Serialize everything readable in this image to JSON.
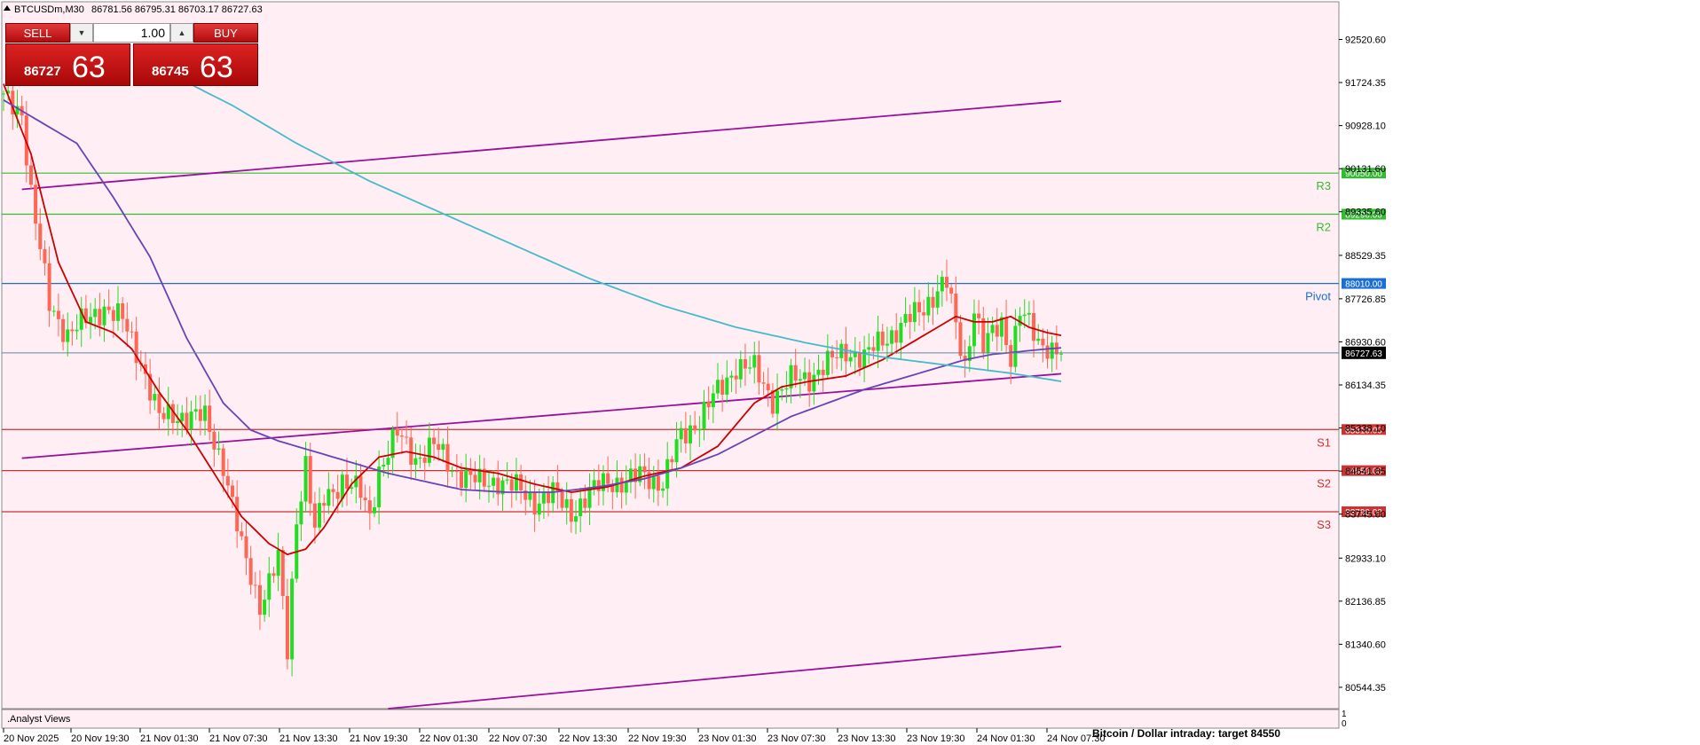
{
  "header": {
    "symbol": "BTCUSDm,M30",
    "ohlc": "86781.56 86795.31 86703.17 86727.63"
  },
  "trade_panel": {
    "sell_label": "SELL",
    "buy_label": "BUY",
    "lot": "1.00",
    "sell_small": "86727",
    "sell_big": "63",
    "buy_small": "86745",
    "buy_big": "63",
    "arrow_down": "▼",
    "arrow_up": "▲"
  },
  "indicator_panel": {
    "name": ".Analyst Views",
    "scale_top": "1",
    "scale_bottom": "0"
  },
  "footer_text": "Bitcoin / Dollar intraday:  target 84550",
  "colors": {
    "background": "#ffeef3",
    "bull": "#22dd22",
    "bear": "#ff6655",
    "ma_fast": "#cc0000",
    "ma_mid": "#6644bb",
    "ma_slow": "#44bbcc",
    "channel": "#991199",
    "pivot": "#1a6fd4",
    "resistance": "#33bb33",
    "support": "#cc3333",
    "current_price": "#5a8aa0"
  },
  "chart_data": {
    "type": "candlestick",
    "ylim": [
      80150,
      93250
    ],
    "y_ticks": [
      "92520.60",
      "91724.35",
      "90928.10",
      "90131.60",
      "89335.60",
      "88529.35",
      "87726.85",
      "86930.60",
      "86134.35",
      "85338.10",
      "84541.85",
      "83745.60",
      "82933.10",
      "82136.85",
      "81340.60",
      "80544.35"
    ],
    "x_ticks": [
      "20 Nov 2025",
      "20 Nov 19:30",
      "21 Nov 01:30",
      "21 Nov 07:30",
      "21 Nov 13:30",
      "21 Nov 19:30",
      "22 Nov 01:30",
      "22 Nov 07:30",
      "22 Nov 13:30",
      "22 Nov 19:30",
      "23 Nov 01:30",
      "23 Nov 07:30",
      "23 Nov 13:30",
      "23 Nov 19:30",
      "24 Nov 01:30",
      "24 Nov 07:30"
    ],
    "bar_count": 232,
    "current_price": "86727.63",
    "levels": [
      {
        "name": "R3",
        "value": 90050,
        "label": "90050.00",
        "kind": "resistance"
      },
      {
        "name": "R2",
        "value": 89290,
        "label": "89290.00",
        "kind": "resistance"
      },
      {
        "name": "Pivot",
        "value": 88010,
        "label": "88010.00",
        "kind": "pivot"
      },
      {
        "name": "S1",
        "value": 85310,
        "label": "85310.00",
        "kind": "support"
      },
      {
        "name": "S2",
        "value": 84550,
        "label": "84550.00",
        "kind": "support"
      },
      {
        "name": "S3",
        "value": 83790,
        "label": "83790.00",
        "kind": "support"
      }
    ],
    "channel_lines": [
      {
        "from": [
          4,
          89750
        ],
        "to": [
          231,
          91380
        ]
      },
      {
        "from": [
          4,
          84780
        ],
        "to": [
          231,
          86340
        ]
      },
      {
        "from": [
          84,
          80150
        ],
        "to": [
          231,
          81300
        ]
      }
    ],
    "close_path": [
      [
        0,
        91400
      ],
      [
        4,
        91200
      ],
      [
        6,
        89700
      ],
      [
        8,
        88600
      ],
      [
        10,
        87600
      ],
      [
        14,
        87100
      ],
      [
        18,
        87300
      ],
      [
        22,
        87600
      ],
      [
        26,
        87300
      ],
      [
        30,
        86600
      ],
      [
        34,
        85500
      ],
      [
        38,
        85600
      ],
      [
        44,
        85500
      ],
      [
        48,
        84700
      ],
      [
        52,
        83100
      ],
      [
        56,
        82100
      ],
      [
        60,
        82900
      ],
      [
        62,
        81200
      ],
      [
        64,
        83700
      ],
      [
        66,
        84700
      ],
      [
        68,
        83400
      ],
      [
        70,
        84000
      ],
      [
        74,
        84400
      ],
      [
        78,
        84100
      ],
      [
        80,
        83700
      ],
      [
        82,
        84600
      ],
      [
        86,
        85200
      ],
      [
        90,
        84800
      ],
      [
        94,
        85000
      ],
      [
        98,
        84600
      ],
      [
        104,
        84300
      ],
      [
        108,
        84400
      ],
      [
        112,
        84200
      ],
      [
        116,
        84000
      ],
      [
        120,
        84100
      ],
      [
        124,
        83800
      ],
      [
        128,
        84100
      ],
      [
        132,
        84400
      ],
      [
        136,
        84300
      ],
      [
        140,
        84500
      ],
      [
        144,
        84300
      ],
      [
        148,
        85200
      ],
      [
        152,
        85500
      ],
      [
        156,
        86000
      ],
      [
        160,
        86500
      ],
      [
        164,
        86400
      ],
      [
        168,
        85900
      ],
      [
        172,
        86200
      ],
      [
        176,
        86300
      ],
      [
        180,
        86500
      ],
      [
        184,
        86800
      ],
      [
        188,
        86600
      ],
      [
        192,
        87000
      ],
      [
        196,
        87200
      ],
      [
        200,
        87500
      ],
      [
        204,
        87900
      ],
      [
        206,
        88000
      ],
      [
        208,
        87200
      ],
      [
        210,
        86500
      ],
      [
        212,
        87600
      ],
      [
        214,
        86800
      ],
      [
        218,
        87300
      ],
      [
        220,
        86700
      ],
      [
        222,
        87500
      ],
      [
        226,
        86900
      ],
      [
        228,
        86900
      ],
      [
        231,
        86728
      ]
    ],
    "series": [
      {
        "name": "",
        "type": "ma",
        "color": "ma_fast",
        "points": [
          [
            0,
            91700
          ],
          [
            6,
            90400
          ],
          [
            12,
            88400
          ],
          [
            18,
            87300
          ],
          [
            24,
            87100
          ],
          [
            28,
            86800
          ],
          [
            34,
            86000
          ],
          [
            40,
            85300
          ],
          [
            46,
            84500
          ],
          [
            52,
            83700
          ],
          [
            58,
            83200
          ],
          [
            62,
            83000
          ],
          [
            66,
            83100
          ],
          [
            70,
            83500
          ],
          [
            76,
            84300
          ],
          [
            82,
            84800
          ],
          [
            88,
            84900
          ],
          [
            94,
            84800
          ],
          [
            100,
            84600
          ],
          [
            108,
            84500
          ],
          [
            116,
            84300
          ],
          [
            124,
            84150
          ],
          [
            132,
            84250
          ],
          [
            140,
            84450
          ],
          [
            148,
            84600
          ],
          [
            156,
            85000
          ],
          [
            164,
            85800
          ],
          [
            170,
            86100
          ],
          [
            176,
            86200
          ],
          [
            184,
            86300
          ],
          [
            192,
            86600
          ],
          [
            198,
            86900
          ],
          [
            204,
            87200
          ],
          [
            208,
            87400
          ],
          [
            212,
            87300
          ],
          [
            216,
            87300
          ],
          [
            220,
            87400
          ],
          [
            224,
            87200
          ],
          [
            228,
            87100
          ],
          [
            231,
            87050
          ]
        ]
      },
      {
        "name": "",
        "type": "ma",
        "color": "ma_mid",
        "points": [
          [
            0,
            91400
          ],
          [
            8,
            91000
          ],
          [
            16,
            90600
          ],
          [
            24,
            89600
          ],
          [
            32,
            88500
          ],
          [
            40,
            87000
          ],
          [
            48,
            85800
          ],
          [
            54,
            85300
          ],
          [
            60,
            85100
          ],
          [
            68,
            84900
          ],
          [
            76,
            84700
          ],
          [
            84,
            84500
          ],
          [
            92,
            84350
          ],
          [
            100,
            84200
          ],
          [
            110,
            84150
          ],
          [
            120,
            84150
          ],
          [
            130,
            84250
          ],
          [
            140,
            84400
          ],
          [
            148,
            84600
          ],
          [
            156,
            84850
          ],
          [
            164,
            85200
          ],
          [
            172,
            85550
          ],
          [
            180,
            85800
          ],
          [
            188,
            86050
          ],
          [
            196,
            86250
          ],
          [
            204,
            86450
          ],
          [
            210,
            86600
          ],
          [
            216,
            86700
          ],
          [
            222,
            86750
          ],
          [
            228,
            86800
          ],
          [
            231,
            86820
          ]
        ]
      },
      {
        "name": "",
        "type": "ma",
        "color": "ma_slow",
        "points": [
          [
            36,
            91900
          ],
          [
            50,
            91300
          ],
          [
            64,
            90600
          ],
          [
            80,
            89900
          ],
          [
            96,
            89300
          ],
          [
            112,
            88700
          ],
          [
            128,
            88100
          ],
          [
            144,
            87600
          ],
          [
            160,
            87200
          ],
          [
            176,
            86900
          ],
          [
            192,
            86650
          ],
          [
            206,
            86500
          ],
          [
            220,
            86350
          ],
          [
            231,
            86200
          ]
        ]
      }
    ]
  }
}
